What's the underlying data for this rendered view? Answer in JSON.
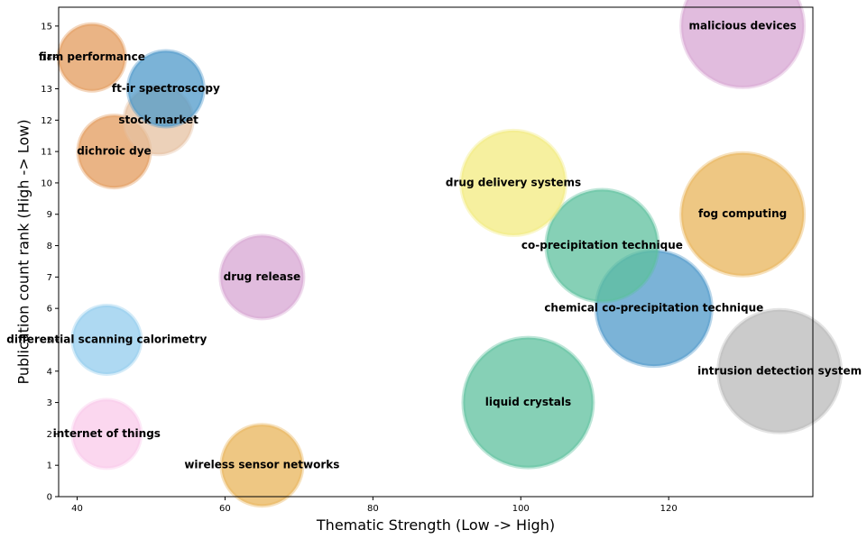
{
  "chart_data": {
    "type": "scatter",
    "title": "",
    "xlabel": "Thematic Strength (Low -> High)",
    "ylabel": "Publication count rank (High -> Low)",
    "xlim": [
      37.5,
      139.5
    ],
    "ylim": [
      0,
      15.6
    ],
    "x_ticks": [
      40,
      60,
      80,
      100,
      120
    ],
    "y_ticks": [
      0,
      1,
      2,
      3,
      4,
      5,
      6,
      7,
      8,
      9,
      10,
      11,
      12,
      13,
      14,
      15
    ],
    "grid": false,
    "legend": "none",
    "points": [
      {
        "label": "wireless sensor networks",
        "x": 65,
        "y": 1,
        "size": 45,
        "color": "#E8B45A"
      },
      {
        "label": "internet of things",
        "x": 44,
        "y": 2,
        "size": 38,
        "color": "#F9C9EA"
      },
      {
        "label": "liquid crystals",
        "x": 101,
        "y": 3,
        "size": 72,
        "color": "#5DC09E"
      },
      {
        "label": "intrusion detection system",
        "x": 135,
        "y": 4,
        "size": 68,
        "color": "#BABABA"
      },
      {
        "label": "differential scanning calorimetry",
        "x": 44,
        "y": 5,
        "size": 38,
        "color": "#93CCEE"
      },
      {
        "label": "chemical co-precipitation technique",
        "x": 118,
        "y": 6,
        "size": 64,
        "color": "#4F99CA"
      },
      {
        "label": "drug release",
        "x": 65,
        "y": 7,
        "size": 46,
        "color": "#D7A5D3"
      },
      {
        "label": "co-precipitation technique",
        "x": 111,
        "y": 8,
        "size": 62,
        "color": "#5DC09E"
      },
      {
        "label": "fog computing",
        "x": 130,
        "y": 9,
        "size": 68,
        "color": "#E8B45A"
      },
      {
        "label": "drug delivery systems",
        "x": 99,
        "y": 10,
        "size": 58,
        "color": "#F3EB7F"
      },
      {
        "label": "dichroic dye",
        "x": 45,
        "y": 11,
        "size": 40,
        "color": "#E39B5C"
      },
      {
        "label": "stock market",
        "x": 51,
        "y": 12,
        "size": 38,
        "color": "#E5C1A2"
      },
      {
        "label": "ft-ir spectroscopy",
        "x": 52,
        "y": 13,
        "size": 42,
        "color": "#4F99CA"
      },
      {
        "label": "firm performance",
        "x": 42,
        "y": 14,
        "size": 37,
        "color": "#E39B5C"
      },
      {
        "label": "malicious devices",
        "x": 130,
        "y": 15,
        "size": 68,
        "color": "#D7A5D3"
      }
    ]
  }
}
